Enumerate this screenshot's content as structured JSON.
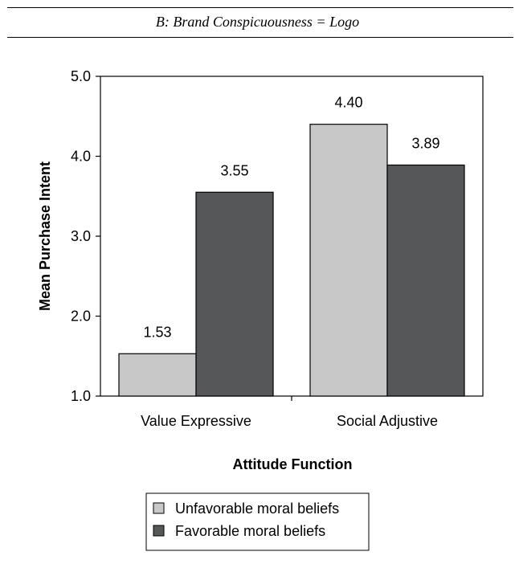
{
  "panel_title": "B: Brand Conspicuousness = Logo",
  "chart_data": {
    "type": "bar",
    "title": "",
    "xlabel": "Attitude Function",
    "ylabel": "Mean Purchase Intent",
    "ylim": [
      1.0,
      5.0
    ],
    "yticks": [
      "1.0",
      "2.0",
      "3.0",
      "4.0",
      "5.0"
    ],
    "categories": [
      "Value Expressive",
      "Social Adjustive"
    ],
    "series": [
      {
        "name": "Unfavorable moral beliefs",
        "values": [
          1.53,
          4.4
        ],
        "labels": [
          "1.53",
          "4.40"
        ],
        "color": "#c8c8c8"
      },
      {
        "name": "Favorable moral beliefs",
        "values": [
          3.55,
          3.89
        ],
        "labels": [
          "3.55",
          "3.89"
        ],
        "color": "#555759"
      }
    ],
    "grid": false,
    "legend_position": "bottom"
  }
}
